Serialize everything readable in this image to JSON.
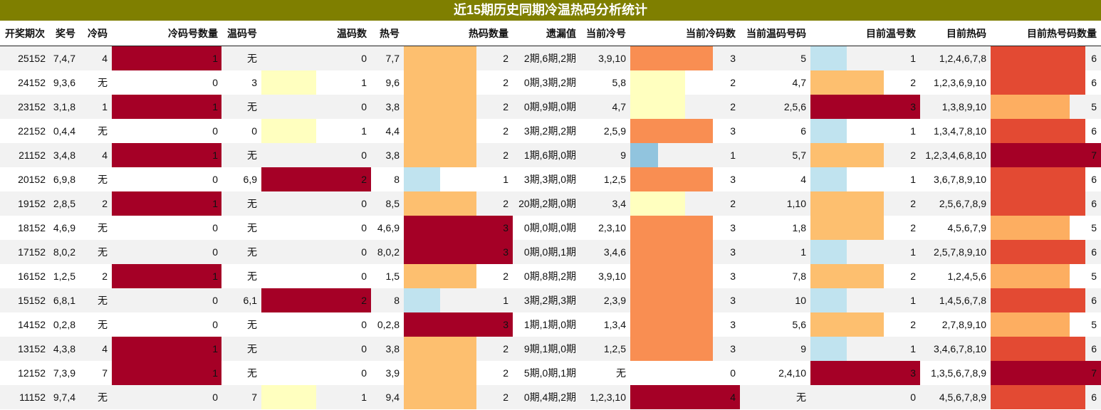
{
  "title": "近15期历史同期冷温热码分析统计",
  "colors": {
    "title_bg": "#7f7f00",
    "row_alt": "#f2f2f2",
    "dark_red": "#a50026",
    "red": "#e34a33",
    "orange": "#f98e52",
    "light_orange": "#fdbf6f",
    "light_orange2": "#fdae61",
    "pale_yellow": "#ffffbf",
    "light_blue": "#c0e3ef",
    "blue": "#91c4de"
  },
  "chart_data": {
    "type": "table",
    "columns": [
      "开奖期次",
      "奖号",
      "冷码",
      "冷码号数量",
      "温码号",
      "温码数",
      "热号",
      "热码数量",
      "遗漏值",
      "当前冷号",
      "当前冷码数",
      "当前温码号码",
      "目前温号数",
      "目前热码",
      "目前热号码数量"
    ],
    "rows": [
      [
        "25152",
        "7,4,7",
        "4",
        1,
        "无",
        0,
        "7,7",
        2,
        "2期,6期,2期",
        "3,9,10",
        3,
        "5",
        1,
        "1,2,4,6,7,8",
        6
      ],
      [
        "24152",
        "9,3,6",
        "无",
        0,
        "3",
        1,
        "9,6",
        2,
        "0期,3期,2期",
        "5,8",
        2,
        "4,7",
        2,
        "1,2,3,6,9,10",
        6
      ],
      [
        "23152",
        "3,1,8",
        "1",
        1,
        "无",
        0,
        "3,8",
        2,
        "0期,9期,0期",
        "4,7",
        2,
        "2,5,6",
        3,
        "1,3,8,9,10",
        5
      ],
      [
        "22152",
        "0,4,4",
        "无",
        0,
        "0",
        1,
        "4,4",
        2,
        "3期,2期,2期",
        "2,5,9",
        3,
        "6",
        1,
        "1,3,4,7,8,10",
        6
      ],
      [
        "21152",
        "3,4,8",
        "4",
        1,
        "无",
        0,
        "3,8",
        2,
        "1期,6期,0期",
        "9",
        1,
        "5,7",
        2,
        "1,2,3,4,6,8,10",
        7
      ],
      [
        "20152",
        "6,9,8",
        "无",
        0,
        "6,9",
        2,
        "8",
        1,
        "3期,3期,0期",
        "1,2,5",
        3,
        "4",
        1,
        "3,6,7,8,9,10",
        6
      ],
      [
        "19152",
        "2,8,5",
        "2",
        1,
        "无",
        0,
        "8,5",
        2,
        "20期,2期,0期",
        "3,4",
        2,
        "1,10",
        2,
        "2,5,6,7,8,9",
        6
      ],
      [
        "18152",
        "4,6,9",
        "无",
        0,
        "无",
        0,
        "4,6,9",
        3,
        "0期,0期,0期",
        "2,3,10",
        3,
        "1,8",
        2,
        "4,5,6,7,9",
        5
      ],
      [
        "17152",
        "8,0,2",
        "无",
        0,
        "无",
        0,
        "8,0,2",
        3,
        "0期,0期,1期",
        "3,4,6",
        3,
        "1",
        1,
        "2,5,7,8,9,10",
        6
      ],
      [
        "16152",
        "1,2,5",
        "2",
        1,
        "无",
        0,
        "1,5",
        2,
        "0期,8期,2期",
        "3,9,10",
        3,
        "7,8",
        2,
        "1,2,4,5,6",
        5
      ],
      [
        "15152",
        "6,8,1",
        "无",
        0,
        "6,1",
        2,
        "8",
        1,
        "3期,2期,3期",
        "2,3,9",
        3,
        "10",
        1,
        "1,4,5,6,7,8",
        6
      ],
      [
        "14152",
        "0,2,8",
        "无",
        0,
        "无",
        0,
        "0,2,8",
        3,
        "1期,1期,0期",
        "1,3,4",
        3,
        "5,6",
        2,
        "2,7,8,9,10",
        5
      ],
      [
        "13152",
        "4,3,8",
        "4",
        1,
        "无",
        0,
        "3,8",
        2,
        "9期,1期,0期",
        "1,2,5",
        3,
        "9",
        1,
        "3,4,6,7,8,10",
        6
      ],
      [
        "12152",
        "7,3,9",
        "7",
        1,
        "无",
        0,
        "3,9",
        2,
        "5期,0期,1期",
        "无",
        0,
        "2,4,10",
        3,
        "1,3,5,6,7,8,9",
        7
      ],
      [
        "11152",
        "9,7,4",
        "无",
        0,
        "7",
        1,
        "9,4",
        2,
        "0期,4期,2期",
        "1,2,3,10",
        4,
        "无",
        0,
        "4,5,6,7,8,9",
        6
      ]
    ]
  }
}
